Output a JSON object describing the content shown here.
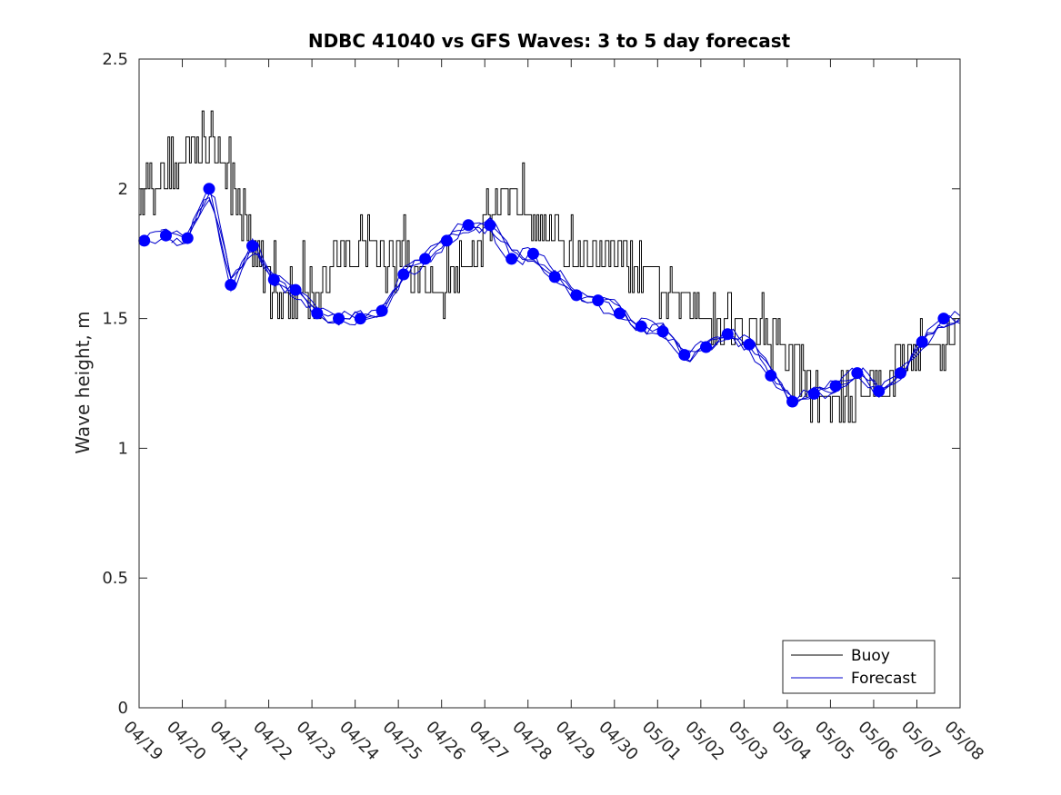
{
  "chart_data": {
    "type": "line",
    "title": "NDBC 41040 vs GFS Waves: 3 to 5 day forecast",
    "xlabel": "",
    "ylabel": "Wave height, m",
    "ylim": [
      0,
      2.5
    ],
    "yticks": [
      "0",
      "0.5",
      "1",
      "1.5",
      "2",
      "2.5"
    ],
    "xlim_days": [
      0,
      19
    ],
    "xtick_labels": [
      "04/19",
      "04/20",
      "04/21",
      "04/22",
      "04/23",
      "04/24",
      "04/25",
      "04/26",
      "04/27",
      "04/28",
      "04/29",
      "04/30",
      "05/01",
      "05/02",
      "05/03",
      "05/04",
      "05/05",
      "05/06",
      "05/07",
      "05/08"
    ],
    "grid": false,
    "legend": {
      "placement": "bottom-right",
      "entries": [
        {
          "name": "Buoy",
          "color": "#000000"
        },
        {
          "name": "Forecast",
          "color": "#0000cc"
        }
      ]
    },
    "colors": {
      "buoy": "#000000",
      "forecast": "#0000cc",
      "forecast_marker": "#0000ff"
    },
    "buoy_anchors": {
      "x_days": [
        0,
        0.5,
        1.0,
        1.3,
        1.6,
        2.0,
        2.3,
        2.6,
        2.9,
        3.2,
        3.6,
        4.0,
        4.4,
        4.8,
        5.2,
        5.6,
        6.0,
        6.4,
        6.8,
        7.2,
        7.6,
        8.0,
        8.3,
        8.6,
        9.0,
        9.4,
        9.8,
        10.2,
        10.6,
        11.0,
        11.4,
        11.8,
        12.2,
        12.6,
        13.0,
        13.4,
        13.8,
        14.2,
        14.6,
        15.0,
        15.4,
        15.7,
        16.0,
        16.3,
        16.6,
        17.0,
        17.4,
        17.8,
        18.2,
        18.6,
        19.0
      ],
      "y": [
        2.0,
        2.05,
        2.1,
        2.15,
        2.2,
        2.1,
        1.95,
        1.8,
        1.65,
        1.6,
        1.55,
        1.58,
        1.65,
        1.75,
        1.8,
        1.75,
        1.72,
        1.65,
        1.6,
        1.65,
        1.75,
        1.85,
        1.95,
        2.0,
        1.95,
        1.85,
        1.78,
        1.75,
        1.75,
        1.73,
        1.7,
        1.65,
        1.6,
        1.55,
        1.55,
        1.52,
        1.5,
        1.45,
        1.4,
        1.35,
        1.28,
        1.2,
        1.17,
        1.18,
        1.22,
        1.25,
        1.3,
        1.35,
        1.38,
        1.42,
        1.45
      ],
      "noise": 0.1
    },
    "forecast_points": {
      "x_days": [
        0.12,
        0.62,
        1.12,
        1.62,
        2.12,
        2.62,
        3.12,
        3.62,
        4.12,
        4.62,
        5.12,
        5.62,
        6.12,
        6.62,
        7.12,
        7.62,
        8.12,
        8.62,
        9.12,
        9.62,
        10.12,
        10.62,
        11.12,
        11.62,
        12.12,
        12.62,
        13.12,
        13.62,
        14.12,
        14.62,
        15.12,
        15.62,
        16.12,
        16.62,
        17.12,
        17.62,
        18.12,
        18.62
      ],
      "y": [
        1.8,
        1.82,
        1.81,
        2.0,
        1.63,
        1.78,
        1.65,
        1.61,
        1.52,
        1.5,
        1.5,
        1.53,
        1.67,
        1.73,
        1.8,
        1.86,
        1.86,
        1.73,
        1.75,
        1.66,
        1.59,
        1.57,
        1.52,
        1.47,
        1.45,
        1.36,
        1.39,
        1.44,
        1.4,
        1.28,
        1.18,
        1.21,
        1.24,
        1.29,
        1.22,
        1.29,
        1.41,
        1.5
      ]
    },
    "forecast_curve_offsets": [
      0.0,
      0.07,
      -0.07,
      0.13
    ]
  },
  "legend_labels": {
    "buoy": "Buoy",
    "forecast": "Forecast"
  }
}
